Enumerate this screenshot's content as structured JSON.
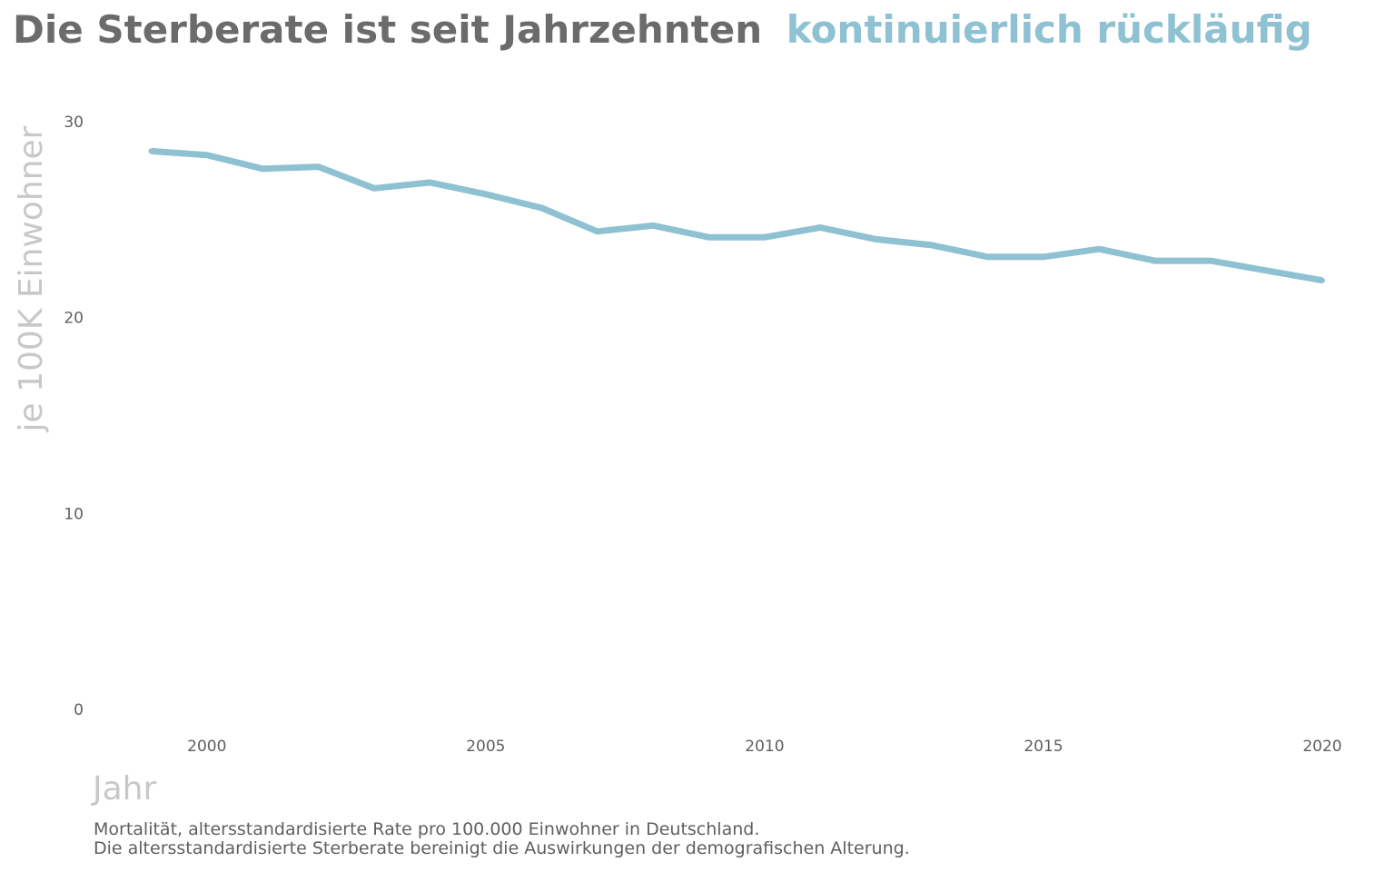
{
  "colors": {
    "title_gray": "#6b6b6b",
    "accent": "#8ec1d1",
    "tick_text": "#5f5f5f",
    "axis_title": "#c8c8c8",
    "caption": "#5f5f5f"
  },
  "title": {
    "part1": "Die Sterberate ist seit Jahrzehnten",
    "part2": "kontinuierlich rückläufig"
  },
  "caption": {
    "line1": "Mortalität, altersstandardisierte Rate pro 100.000 Einwohner in Deutschland.",
    "line2": "Die altersstandardisierte Sterberate bereinigt die Auswirkungen der demografischen Alterung."
  },
  "chart_data": {
    "type": "line",
    "title": "Die Sterberate ist seit Jahrzehnten kontinuierlich rückläufig",
    "xlabel": "Jahr",
    "ylabel": "je 100K Einwohner",
    "xlim": [
      1998,
      2020.5
    ],
    "ylim": [
      0,
      30
    ],
    "x_ticks": [
      2000,
      2005,
      2010,
      2015,
      2020
    ],
    "y_ticks": [
      0,
      10,
      20,
      30
    ],
    "grid": false,
    "series": [
      {
        "color": "#8ec1d1",
        "x": [
          1999,
          2000,
          2001,
          2002,
          2003,
          2004,
          2005,
          2006,
          2007,
          2008,
          2009,
          2010,
          2011,
          2012,
          2013,
          2014,
          2015,
          2016,
          2017,
          2018,
          2019,
          2020
        ],
        "values": [
          28.5,
          28.3,
          27.6,
          27.7,
          26.6,
          26.9,
          26.3,
          25.6,
          24.4,
          24.7,
          24.1,
          24.1,
          24.6,
          24.0,
          23.7,
          23.1,
          23.1,
          23.5,
          22.9,
          22.9,
          22.4,
          21.9
        ]
      }
    ]
  }
}
